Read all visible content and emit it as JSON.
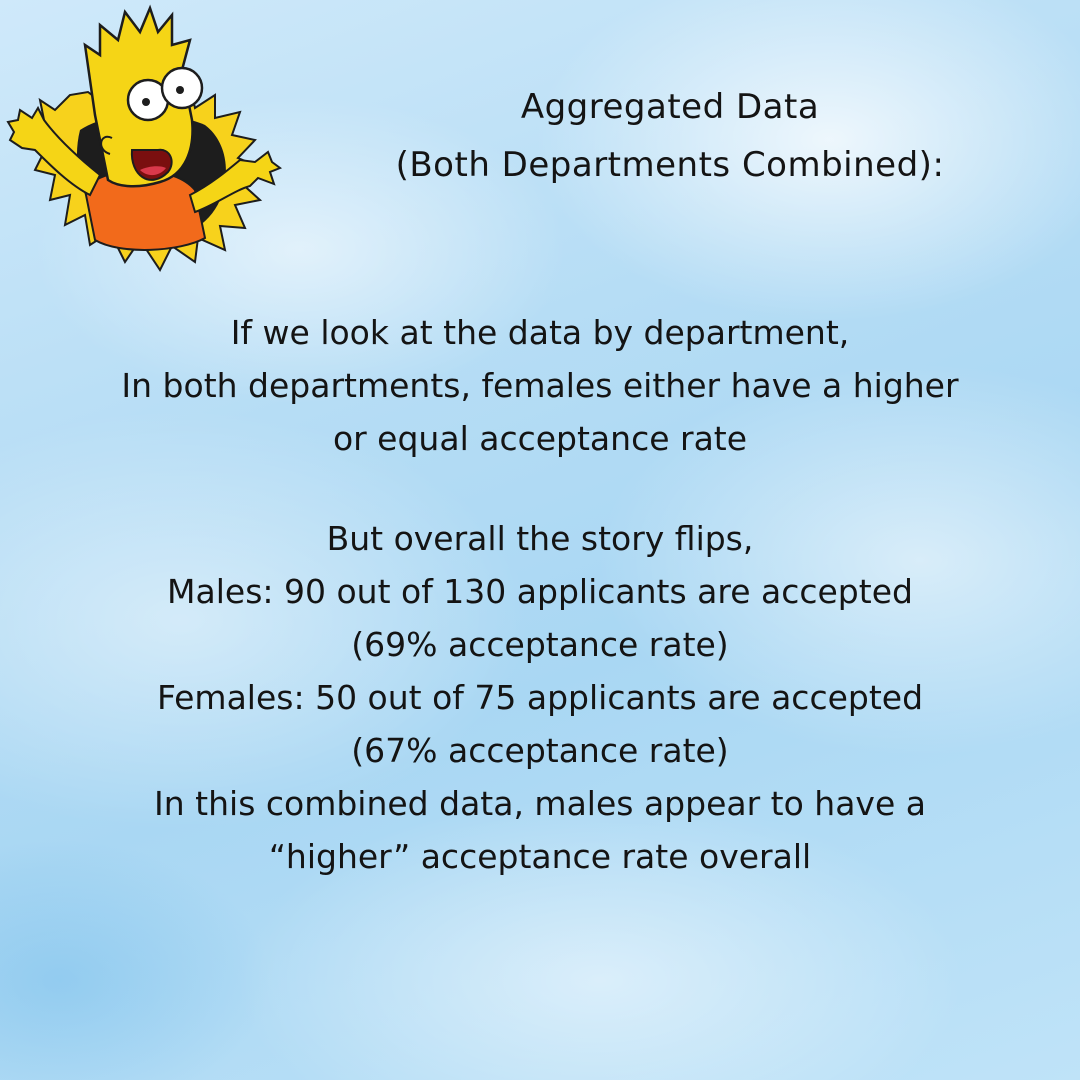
{
  "title": {
    "line1": "Aggregated Data",
    "line2": "(Both Departments Combined):"
  },
  "intro": {
    "line1": "If we look at the data by department,",
    "line2": "In both departments, females either have a higher",
    "line3": "or equal acceptance rate"
  },
  "overall": {
    "line1": "But overall the story flips,",
    "males": "Males: 90 out of 130 applicants are accepted",
    "males_rate": "(69% acceptance rate)",
    "females": "Females: 50 out of 75 applicants are accepted",
    "females_rate": "(67% acceptance rate)",
    "conclusion1": "In this combined data, males appear to have a",
    "conclusion2": "“higher” acceptance rate overall"
  },
  "illustration": {
    "icon": "cartoon-character-bursting-through-paper-icon",
    "colors": {
      "skin": "#f5d516",
      "shirt": "#f26a1b",
      "burst": "#f7d21c",
      "hole": "#1d1d1d"
    }
  }
}
